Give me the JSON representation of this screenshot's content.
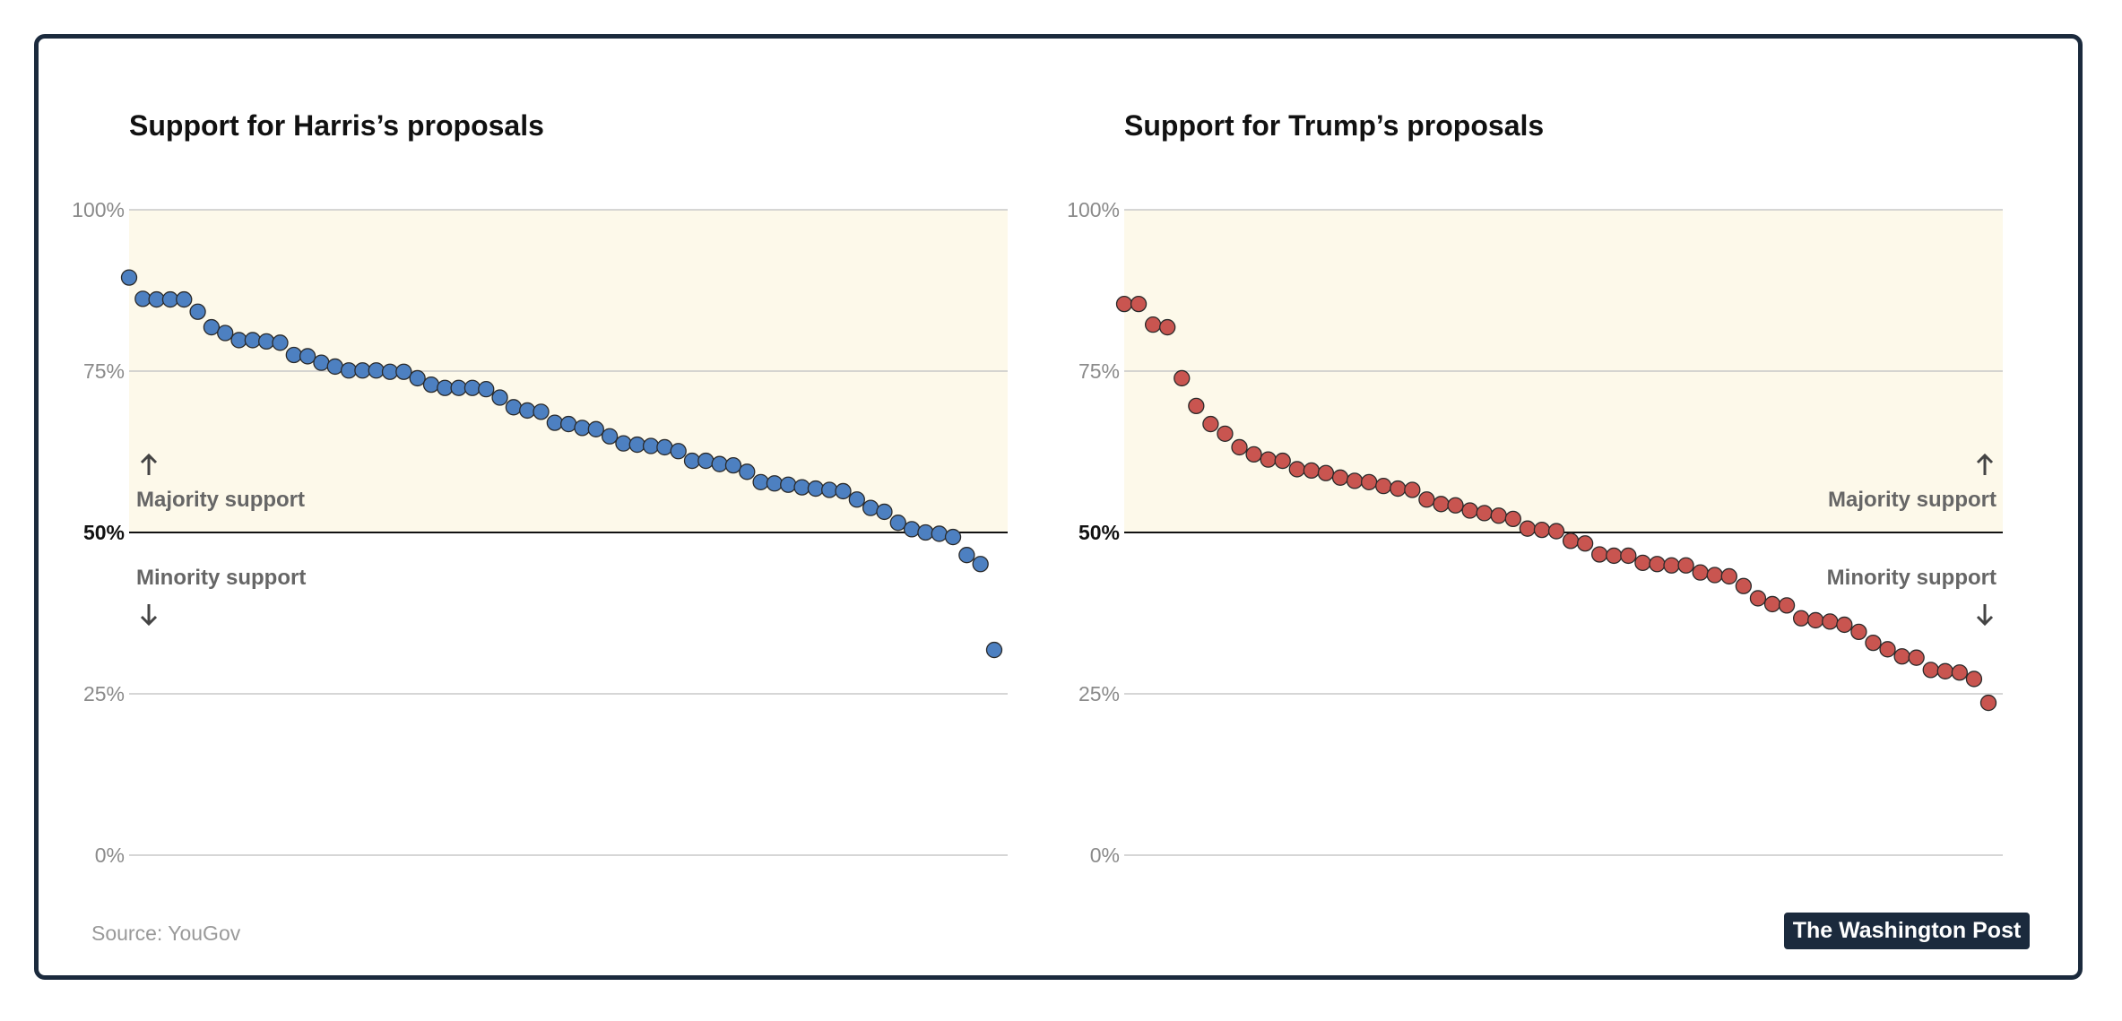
{
  "source": "Source: YouGov",
  "logo": "The Washington Post",
  "colors": {
    "harris": "#4d80c1",
    "trump": "#c95550",
    "majority_band": "#fdf9ea"
  },
  "chart_data": [
    {
      "type": "scatter",
      "title": "Support for Harris’s proposals",
      "ylim": [
        0,
        100
      ],
      "yticks": [
        "0%",
        "25%",
        "50%",
        "75%",
        "100%"
      ],
      "annotations": [
        "Majority support",
        "Minority support"
      ],
      "annotation_side": "left",
      "y": [
        89.5,
        86.2,
        86.1,
        86.1,
        86.1,
        84.2,
        81.8,
        80.9,
        79.8,
        79.8,
        79.6,
        79.4,
        77.5,
        77.3,
        76.3,
        75.7,
        75.1,
        75.1,
        75.1,
        74.9,
        74.9,
        73.9,
        72.9,
        72.4,
        72.4,
        72.4,
        72.2,
        70.9,
        69.4,
        68.9,
        68.7,
        67.0,
        66.8,
        66.2,
        66.0,
        64.9,
        63.8,
        63.6,
        63.4,
        63.2,
        62.6,
        61.1,
        61.1,
        60.6,
        60.4,
        59.4,
        57.8,
        57.6,
        57.4,
        57.0,
        56.8,
        56.6,
        56.4,
        55.1,
        53.8,
        53.2,
        51.5,
        50.5,
        50.0,
        49.8,
        49.3,
        46.5,
        45.1,
        31.8
      ]
    },
    {
      "type": "scatter",
      "title": "Support for Trump’s proposals",
      "ylim": [
        0,
        100
      ],
      "yticks": [
        "0%",
        "25%",
        "50%",
        "75%",
        "100%"
      ],
      "annotations": [
        "Majority support",
        "Minority support"
      ],
      "annotation_side": "right",
      "y": [
        85.4,
        85.4,
        82.2,
        81.8,
        73.9,
        69.6,
        66.8,
        65.3,
        63.2,
        62.1,
        61.3,
        61.1,
        59.8,
        59.6,
        59.2,
        58.5,
        58.0,
        57.8,
        57.2,
        56.8,
        56.6,
        55.1,
        54.4,
        54.2,
        53.4,
        53.0,
        52.6,
        52.1,
        50.6,
        50.4,
        50.2,
        48.7,
        48.3,
        46.6,
        46.4,
        46.4,
        45.3,
        45.1,
        44.9,
        44.9,
        43.8,
        43.4,
        43.2,
        41.7,
        39.8,
        38.9,
        38.7,
        36.7,
        36.4,
        36.2,
        35.7,
        34.6,
        32.9,
        31.9,
        30.8,
        30.6,
        28.7,
        28.5,
        28.3,
        27.3,
        23.6
      ]
    }
  ]
}
